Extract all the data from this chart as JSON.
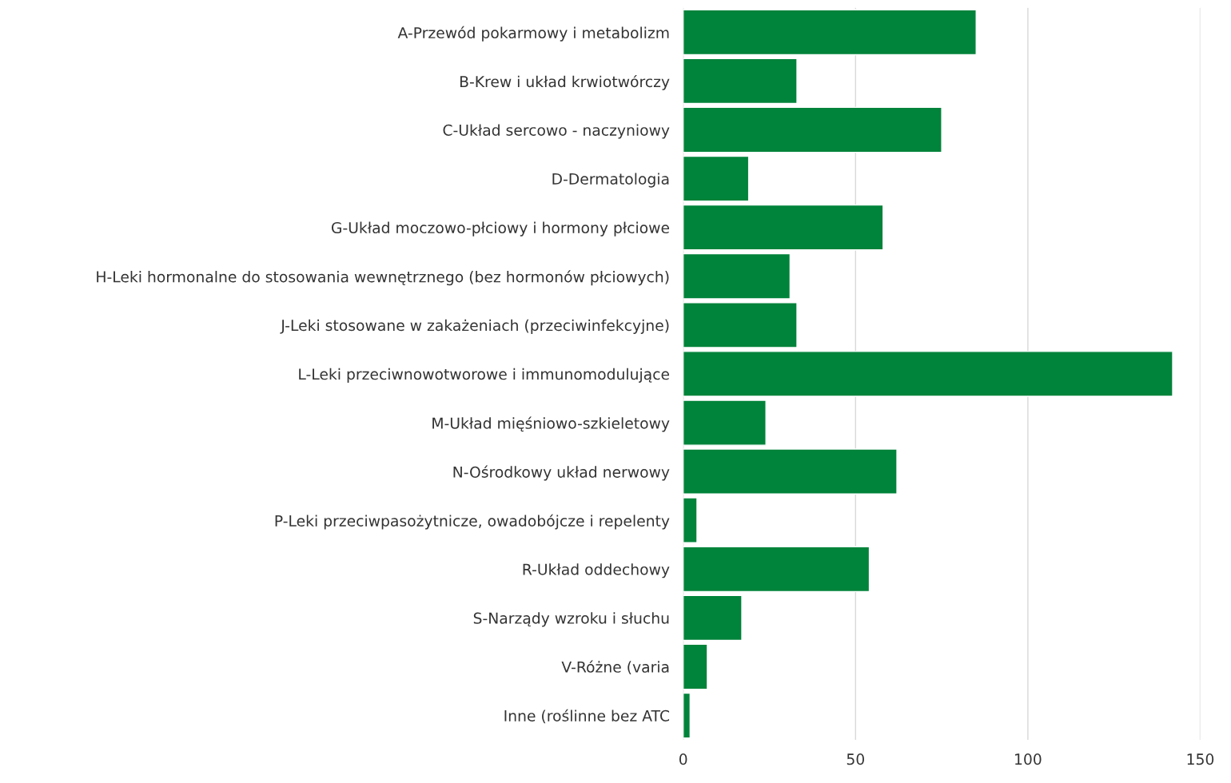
{
  "chart_data": {
    "type": "bar",
    "orientation": "horizontal",
    "categories": [
      "A-Przewód pokarmowy i metabolizm",
      "B-Krew i układ krwiotwórczy",
      "C-Układ sercowo - naczyniowy",
      "D-Dermatologia",
      "G-Układ moczowo-płciowy i hormony płciowe",
      "H-Leki hormonalne do stosowania wewnętrznego (bez hormonów płciowych)",
      "J-Leki stosowane w zakażeniach (przeciwinfekcyjne)",
      "L-Leki przeciwnowotworowe i immunomodulujące",
      "M-Układ mięśniowo-szkieletowy",
      "N-Ośrodkowy układ nerwowy",
      "P-Leki przeciwpasożytnicze, owadobójcze i repelenty",
      "R-Układ oddechowy",
      "S-Narządy wzroku i słuchu",
      "V-Różne (varia",
      "Inne (roślinne bez ATC"
    ],
    "values": [
      85,
      33,
      75,
      19,
      58,
      31,
      33,
      142,
      24,
      62,
      4,
      54,
      17,
      7,
      2
    ],
    "color": "#00833a",
    "xlim": [
      0,
      150
    ],
    "xticks": [
      0,
      50,
      100,
      150
    ],
    "grid": "x",
    "legend": false
  }
}
